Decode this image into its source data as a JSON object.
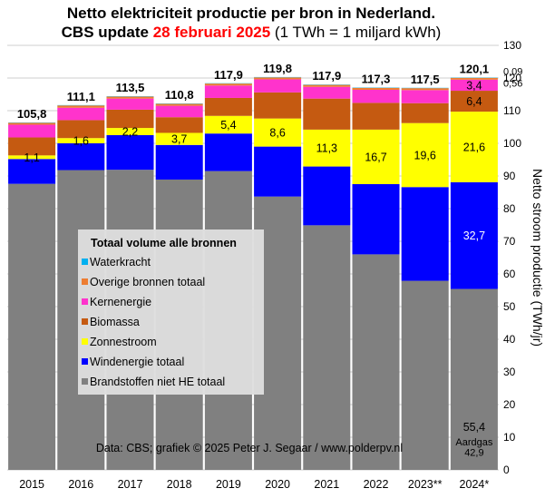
{
  "chart_data": {
    "type": "bar",
    "stacked": true,
    "title_line1": "Netto elektriciteit  productie  per bron in Nederland.",
    "title_line2_prefix": "CBS update ",
    "title_line2_date": "28 februari 2025",
    "title_line2_suffix": " (1 TWh = 1 miljard kWh)",
    "ylabel": "Netto stroom productie (TWh/jr)",
    "ylim": [
      0,
      130
    ],
    "yticks": [
      0,
      10,
      20,
      30,
      40,
      50,
      60,
      70,
      80,
      90,
      100,
      110,
      120,
      130
    ],
    "grid": true,
    "legend_title": "Totaal volume alle bronnen",
    "legend_position": "center-left",
    "source_note": "Data: CBS;  grafiek © 2025  Peter J. Segaar / www.polderpv.nl",
    "categories": [
      "2015",
      "2016",
      "2017",
      "2018",
      "2019",
      "2020",
      "2021",
      "2022",
      "2023**",
      "2024*"
    ],
    "totals": [
      "105,8",
      "111,1",
      "113,5",
      "110,8",
      "117,9",
      "119,8",
      "117,9",
      "117,3",
      "117,5",
      "120,1"
    ],
    "series": [
      {
        "name": "Brandstoffen niet HE totaal",
        "color": "#808080",
        "values": [
          87.6,
          91.8,
          91.9,
          88.9,
          91.5,
          83.7,
          74.9,
          66.0,
          57.9,
          55.4
        ]
      },
      {
        "name": "Windenergie totaal",
        "color": "#0000ff",
        "values": [
          7.6,
          8.2,
          10.6,
          10.6,
          11.5,
          15.3,
          18.0,
          21.5,
          28.7,
          32.7
        ]
      },
      {
        "name": "Zonnestroom",
        "color": "#ffff00",
        "values": [
          1.1,
          1.6,
          2.2,
          3.7,
          5.4,
          8.6,
          11.3,
          16.7,
          19.6,
          21.6
        ]
      },
      {
        "name": "Biomassa",
        "color": "#c55a11",
        "values": [
          5.5,
          5.5,
          5.6,
          4.8,
          5.5,
          8.0,
          9.5,
          8.2,
          6.1,
          6.4
        ]
      },
      {
        "name": "Kernenergie",
        "color": "#ff33cc",
        "values": [
          3.9,
          3.8,
          3.4,
          3.5,
          3.8,
          4.0,
          3.6,
          4.0,
          4.0,
          3.4
        ]
      },
      {
        "name": "Overige bronnen totaal",
        "color": "#ed7d31",
        "values": [
          0.6,
          0.7,
          0.6,
          0.6,
          0.6,
          0.6,
          0.6,
          0.6,
          0.6,
          0.56
        ]
      },
      {
        "name": "Waterkracht",
        "color": "#00b0f0",
        "values": [
          0.1,
          0.1,
          0.1,
          0.1,
          0.1,
          0.1,
          0.1,
          0.1,
          0.1,
          0.09
        ]
      }
    ],
    "data_labels": [
      {
        "category": "2015",
        "series": "Zonnestroom",
        "text": "1,1"
      },
      {
        "category": "2016",
        "series": "Zonnestroom",
        "text": "1,6"
      },
      {
        "category": "2017",
        "series": "Zonnestroom",
        "text": "2,2"
      },
      {
        "category": "2018",
        "series": "Zonnestroom",
        "text": "3,7"
      },
      {
        "category": "2019",
        "series": "Zonnestroom",
        "text": "5,4"
      },
      {
        "category": "2020",
        "series": "Zonnestroom",
        "text": "8,6"
      },
      {
        "category": "2021",
        "series": "Zonnestroom",
        "text": "11,3"
      },
      {
        "category": "2022",
        "series": "Zonnestroom",
        "text": "16,7"
      },
      {
        "category": "2023**",
        "series": "Zonnestroom",
        "text": "19,6"
      },
      {
        "category": "2024*",
        "series": "Zonnestroom",
        "text": "21,6"
      },
      {
        "category": "2024*",
        "series": "Windenergie totaal",
        "text": "32,7",
        "color": "#ffffff"
      },
      {
        "category": "2024*",
        "series": "Biomassa",
        "text": "6,4"
      },
      {
        "category": "2024*",
        "series": "Kernenergie",
        "text": "3,4"
      },
      {
        "category": "2024*",
        "series": "Brandstoffen niet HE totaal",
        "text": "55,4",
        "align": "bottom"
      }
    ],
    "sub_annotation": {
      "category": "2024*",
      "line1": "Aardgas",
      "line2": "42,9"
    },
    "right_annotations": [
      {
        "text": "0,09",
        "y": 120.1
      },
      {
        "text": "0,56",
        "y": 116.5
      }
    ]
  }
}
